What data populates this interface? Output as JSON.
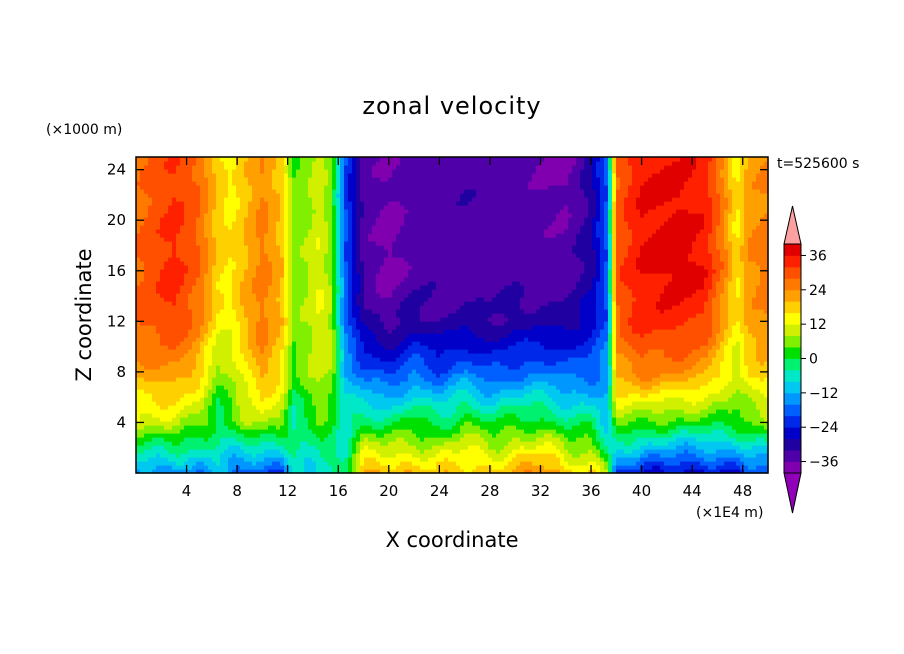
{
  "chart_data": {
    "type": "heatmap",
    "title": "zonal velocity",
    "xlabel": "X coordinate",
    "ylabel": "Z coordinate",
    "x_unit": "(×1E4 m)",
    "y_unit": "(×1000 m)",
    "time_label": "t=525600 s",
    "xlim": [
      0,
      50
    ],
    "ylim": [
      0,
      25
    ],
    "x_ticks": [
      "4",
      "8",
      "12",
      "16",
      "20",
      "24",
      "28",
      "32",
      "36",
      "40",
      "44",
      "48"
    ],
    "y_ticks": [
      "4",
      "8",
      "12",
      "16",
      "20",
      "24"
    ],
    "levels": [
      -40,
      -36,
      -32,
      -28,
      -24,
      -20,
      -16,
      -12,
      -8,
      -4,
      0,
      4,
      8,
      12,
      16,
      20,
      24,
      28,
      32,
      36,
      40
    ],
    "colorbar_labels": [
      "36",
      "24",
      "12",
      "0",
      "−12",
      "−24",
      "−36"
    ],
    "colorbar_label_values": [
      36,
      24,
      12,
      0,
      -12,
      -24,
      -36
    ],
    "colormap": [
      "#8000b0",
      "#5000a8",
      "#2000a0",
      "#0000c8",
      "#0028e8",
      "#0060ff",
      "#0098ff",
      "#00c8f0",
      "#00e8c8",
      "#00f070",
      "#00e000",
      "#80f000",
      "#d0f000",
      "#ffff00",
      "#ffd000",
      "#ffa000",
      "#ff7800",
      "#ff5000",
      "#ff2000",
      "#e00000"
    ],
    "over_color": "#ffa0a0",
    "under_color": "#9000b8",
    "columns": [
      {
        "x": 0,
        "v": [
          -14,
          10,
          22,
          28,
          28,
          26
        ]
      },
      {
        "x": 3,
        "v": [
          -16,
          10,
          24,
          32,
          34,
          32
        ]
      },
      {
        "x": 5,
        "v": [
          -14,
          6,
          18,
          26,
          28,
          28
        ]
      },
      {
        "x": 6.5,
        "v": [
          -10,
          -2,
          6,
          14,
          18,
          18
        ]
      },
      {
        "x": 7.5,
        "v": [
          -16,
          2,
          8,
          14,
          16,
          14
        ]
      },
      {
        "x": 8.5,
        "v": [
          -18,
          6,
          14,
          20,
          20,
          18
        ]
      },
      {
        "x": 10,
        "v": [
          -22,
          10,
          22,
          26,
          26,
          24
        ]
      },
      {
        "x": 11.5,
        "v": [
          -20,
          6,
          16,
          20,
          20,
          18
        ]
      },
      {
        "x": 12.5,
        "v": [
          -6,
          -4,
          2,
          6,
          6,
          4
        ]
      },
      {
        "x": 13.5,
        "v": [
          -8,
          0,
          6,
          8,
          8,
          6
        ]
      },
      {
        "x": 14.5,
        "v": [
          -6,
          2,
          10,
          12,
          12,
          10
        ]
      },
      {
        "x": 15.5,
        "v": [
          -8,
          2,
          8,
          8,
          6,
          4
        ]
      },
      {
        "x": 16.5,
        "v": [
          -4,
          -6,
          -12,
          -16,
          -18,
          -20
        ]
      },
      {
        "x": 18,
        "v": [
          20,
          0,
          -18,
          -30,
          -34,
          -34
        ]
      },
      {
        "x": 20,
        "v": [
          22,
          -2,
          -22,
          -34,
          -38,
          -36
        ]
      },
      {
        "x": 22,
        "v": [
          18,
          2,
          -16,
          -30,
          -34,
          -34
        ]
      },
      {
        "x": 24,
        "v": [
          18,
          -2,
          -20,
          -32,
          -34,
          -34
        ]
      },
      {
        "x": 26,
        "v": [
          20,
          4,
          -16,
          -30,
          -34,
          -32
        ]
      },
      {
        "x": 28,
        "v": [
          18,
          0,
          -20,
          -32,
          -34,
          -34
        ]
      },
      {
        "x": 30,
        "v": [
          20,
          2,
          -18,
          -30,
          -34,
          -34
        ]
      },
      {
        "x": 32,
        "v": [
          26,
          2,
          -16,
          -30,
          -34,
          -36
        ]
      },
      {
        "x": 34,
        "v": [
          18,
          -2,
          -18,
          -30,
          -34,
          -38
        ]
      },
      {
        "x": 36,
        "v": [
          16,
          -2,
          -18,
          -26,
          -30,
          -30
        ]
      },
      {
        "x": 37.3,
        "v": [
          6,
          -10,
          -14,
          -18,
          -18,
          -18
        ]
      },
      {
        "x": 38,
        "v": [
          -20,
          6,
          22,
          28,
          30,
          28
        ]
      },
      {
        "x": 40,
        "v": [
          -24,
          4,
          26,
          34,
          36,
          36
        ]
      },
      {
        "x": 43,
        "v": [
          -26,
          2,
          24,
          34,
          38,
          36
        ]
      },
      {
        "x": 45,
        "v": [
          -26,
          2,
          22,
          32,
          36,
          34
        ]
      },
      {
        "x": 46.5,
        "v": [
          -24,
          2,
          14,
          22,
          26,
          24
        ]
      },
      {
        "x": 47.5,
        "v": [
          -24,
          2,
          10,
          14,
          16,
          14
        ]
      },
      {
        "x": 48.5,
        "v": [
          -20,
          4,
          16,
          22,
          24,
          22
        ]
      },
      {
        "x": 50,
        "v": [
          -18,
          6,
          18,
          24,
          26,
          24
        ]
      }
    ],
    "z_levels": [
      0,
      4,
      8,
      12,
      16,
      25
    ]
  }
}
